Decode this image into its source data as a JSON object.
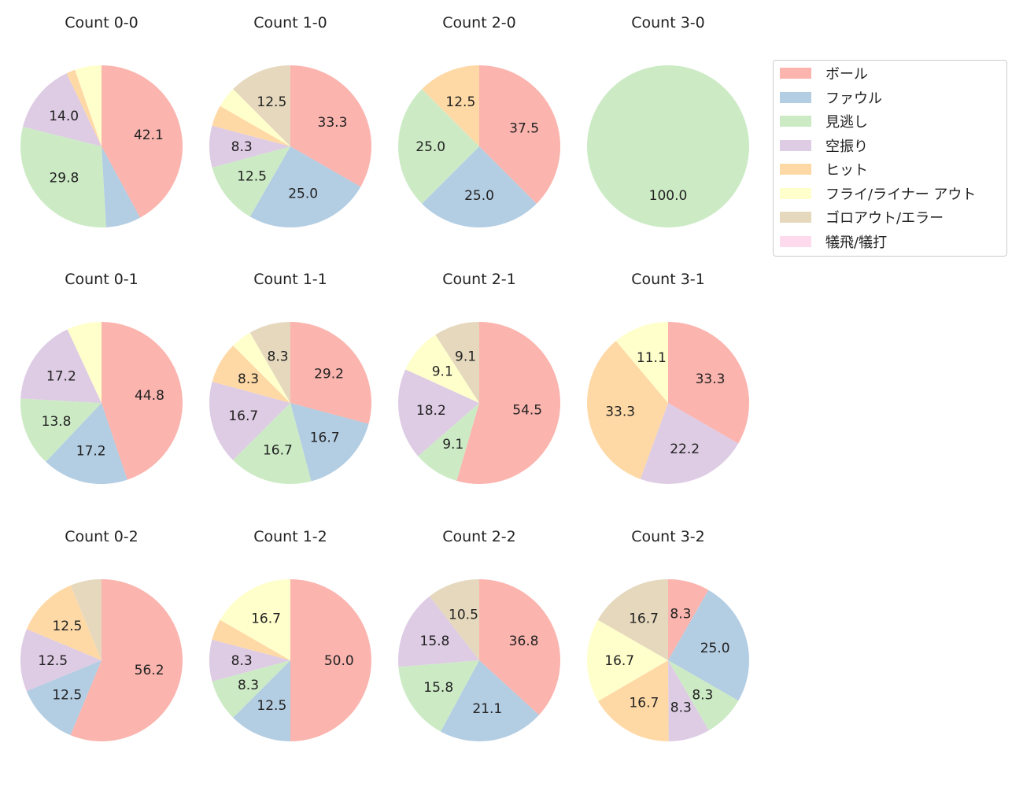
{
  "chart_data": {
    "type": "pie",
    "start_angle": "top",
    "direction": "clockwise",
    "legend_placement": "upper-right",
    "categories": [
      "ボール",
      "ファウル",
      "見逃し",
      "空振り",
      "ヒット",
      "フライ/ライナー アウト",
      "ゴロアウト/エラー",
      "犠飛/犠打"
    ],
    "colors": [
      "#fbb4ae",
      "#b3cde3",
      "#ccebc5",
      "#decbe4",
      "#fed9a6",
      "#ffffcc",
      "#e5d8bd",
      "#fddaec"
    ],
    "charts": [
      {
        "title": "Count 0-0",
        "values": [
          42.1,
          7.0,
          29.8,
          14.0,
          1.8,
          5.3,
          0,
          0
        ]
      },
      {
        "title": "Count 1-0",
        "values": [
          33.3,
          25.0,
          12.5,
          8.3,
          4.2,
          4.2,
          12.5,
          0
        ]
      },
      {
        "title": "Count 2-0",
        "values": [
          37.5,
          25.0,
          25.0,
          0,
          12.5,
          0,
          0,
          0
        ]
      },
      {
        "title": "Count 3-0",
        "values": [
          0,
          0,
          100.0,
          0,
          0,
          0,
          0,
          0
        ]
      },
      {
        "title": "Count 0-1",
        "values": [
          44.8,
          17.2,
          13.8,
          17.2,
          0,
          6.9,
          0,
          0
        ]
      },
      {
        "title": "Count 1-1",
        "values": [
          29.2,
          16.7,
          16.7,
          16.7,
          8.3,
          4.2,
          8.3,
          0
        ]
      },
      {
        "title": "Count 2-1",
        "values": [
          54.5,
          0,
          9.1,
          18.2,
          0,
          9.1,
          9.1,
          0
        ]
      },
      {
        "title": "Count 3-1",
        "values": [
          33.3,
          0,
          0,
          22.2,
          33.3,
          11.1,
          0,
          0
        ]
      },
      {
        "title": "Count 0-2",
        "values": [
          56.2,
          12.5,
          0,
          12.5,
          12.5,
          0,
          6.2,
          0
        ]
      },
      {
        "title": "Count 1-2",
        "values": [
          50.0,
          12.5,
          8.3,
          8.3,
          4.2,
          16.7,
          0,
          0
        ]
      },
      {
        "title": "Count 2-2",
        "values": [
          36.8,
          21.1,
          15.8,
          15.8,
          0,
          0,
          10.5,
          0
        ]
      },
      {
        "title": "Count 3-2",
        "values": [
          8.3,
          25.0,
          8.3,
          8.3,
          16.7,
          16.7,
          16.7,
          0
        ]
      }
    ]
  }
}
